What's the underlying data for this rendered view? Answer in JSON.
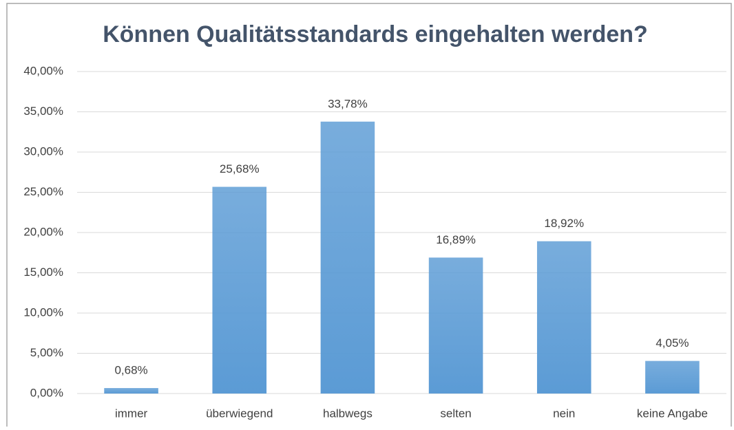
{
  "chart_data": {
    "type": "bar",
    "title": "Können Qualitätsstandards eingehalten werden?",
    "categories": [
      "immer",
      "überwiegend",
      "halbwegs",
      "selten",
      "nein",
      "keine Angabe"
    ],
    "values": [
      0.68,
      25.68,
      33.78,
      16.89,
      18.92,
      4.05
    ],
    "value_labels": [
      "0,68%",
      "25,68%",
      "33,78%",
      "16,89%",
      "18,92%",
      "4,05%"
    ],
    "color": "#5b9bd5",
    "ylim": [
      0,
      40
    ],
    "yticks": [
      {
        "value": 0,
        "label": "0,00%"
      },
      {
        "value": 5,
        "label": "5,00%"
      },
      {
        "value": 10,
        "label": "10,00%"
      },
      {
        "value": 15,
        "label": "15,00%"
      },
      {
        "value": 20,
        "label": "20,00%"
      },
      {
        "value": 25,
        "label": "25,00%"
      },
      {
        "value": 30,
        "label": "30,00%"
      },
      {
        "value": 35,
        "label": "35,00%"
      },
      {
        "value": 40,
        "label": "40,00%"
      }
    ],
    "grid": true
  }
}
